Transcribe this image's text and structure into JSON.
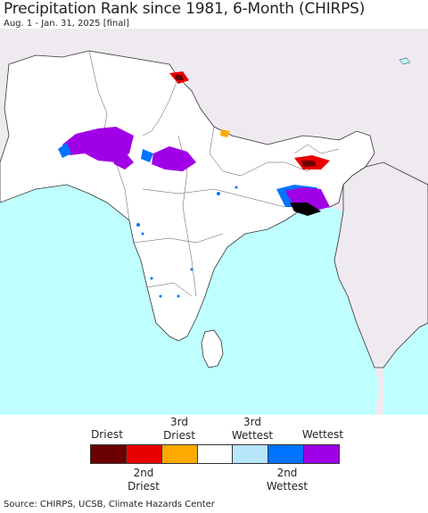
{
  "title": "Precipitation Rank since 1981, 6-Month (CHIRPS)",
  "subtitle": "Aug. 1 - Jan. 31, 2025 [final]",
  "legend": {
    "top_labels": [
      {
        "text": "Driest",
        "line2": ""
      },
      {
        "text": "3rd",
        "line2": "Driest"
      },
      {
        "text": "3rd",
        "line2": "Wettest"
      },
      {
        "text": "Wettest",
        "line2": ""
      }
    ],
    "bottom_labels": [
      {
        "text": "2nd",
        "line2": "Driest"
      },
      {
        "text": "2nd",
        "line2": "Wettest"
      }
    ],
    "colors": [
      "#6b0000",
      "#e80000",
      "#ffaa00",
      "#ffffff",
      "#b8e6fa",
      "#0073ff",
      "#a000e6"
    ]
  },
  "map_colors": {
    "sea": "#bfffff",
    "land_outside": "#eeeaf0",
    "land_inside": "#ffffff",
    "border": "#333333"
  },
  "source": "Source: CHIRPS, UCSB, Climate Hazards Center"
}
